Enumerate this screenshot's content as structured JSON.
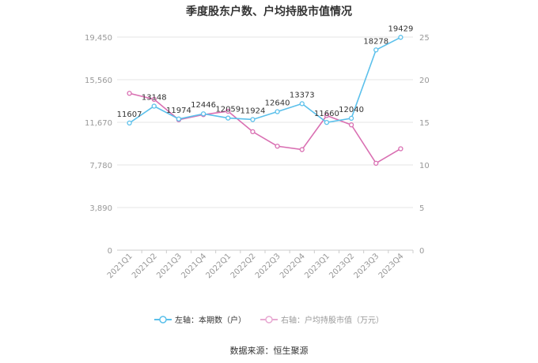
{
  "title": "季度股东户数、户均持股市值情况",
  "source": "数据来源：恒生聚源",
  "colors": {
    "left_series": "#5bc0eb",
    "right_series": "#d96fb2",
    "grid": "#e6e6e6",
    "axis_text": "#999999"
  },
  "chart_data": {
    "type": "line",
    "title": "季度股东户数、户均持股市值情况",
    "categories": [
      "2021Q1",
      "2021Q2",
      "2021Q3",
      "2021Q4",
      "2022Q1",
      "2022Q2",
      "2022Q3",
      "2022Q4",
      "2023Q1",
      "2023Q2",
      "2023Q3",
      "2023Q4"
    ],
    "left_axis": {
      "ticks": [
        "0",
        "3,890",
        "7,780",
        "11,670",
        "15,560",
        "19,450"
      ],
      "ylim": [
        0,
        19450
      ]
    },
    "right_axis": {
      "ticks": [
        "0",
        "5",
        "10",
        "15",
        "20",
        "25"
      ],
      "ylim": [
        0,
        25
      ]
    },
    "series": [
      {
        "name": "左轴：本期数（户）",
        "axis": "left",
        "values": [
          11607,
          13148,
          11974,
          12446,
          12059,
          11924,
          12640,
          13373,
          11660,
          12040,
          18278,
          19429
        ],
        "labels": [
          "11607",
          "13148",
          "11974",
          "12446",
          "12059",
          "11924",
          "12640",
          "13373",
          "11660",
          "12040",
          "18278",
          "19429"
        ]
      },
      {
        "name": "右轴：户均持股市值（万元）",
        "axis": "right",
        "values": [
          18.4,
          17.7,
          15.3,
          15.9,
          16.3,
          13.9,
          12.2,
          11.8,
          15.8,
          14.7,
          10.2,
          11.9
        ]
      }
    ],
    "grid": true,
    "legend_position": "bottom"
  }
}
